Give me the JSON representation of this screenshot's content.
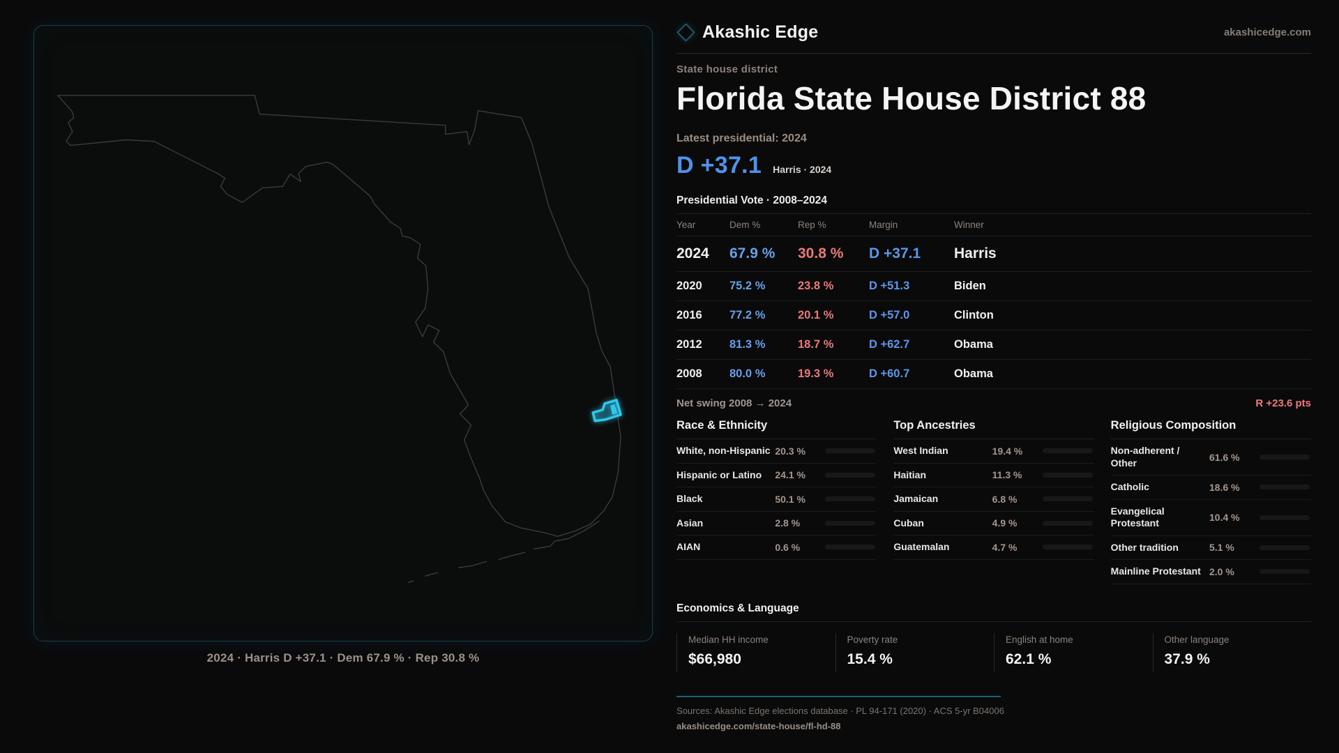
{
  "brand": {
    "name": "Akashic Edge",
    "site": "akashicedge.com",
    "accent": "#2bc6ea"
  },
  "header": {
    "kicker": "State house district",
    "title": "Florida State House District 88"
  },
  "latest": {
    "label": "Latest presidential: 2024",
    "margin": "D +37.1",
    "note": "Harris · 2024"
  },
  "colors": {
    "dem_blue": "#5b98e9",
    "rep_red": "#e97a78",
    "swing_red": "#ef7b78",
    "district_cyan": "#2ec9ef"
  },
  "table": {
    "title": "Presidential Vote · 2008–2024",
    "columns": [
      "Year",
      "Dem %",
      "Rep %",
      "Margin",
      "Winner"
    ],
    "rows": [
      {
        "year": "2024",
        "dem": "67.9 %",
        "rep": "30.8 %",
        "margin": "D +37.1",
        "winner": "Harris"
      },
      {
        "year": "2020",
        "dem": "75.2 %",
        "rep": "23.8 %",
        "margin": "D +51.3",
        "winner": "Biden"
      },
      {
        "year": "2016",
        "dem": "77.2 %",
        "rep": "20.1 %",
        "margin": "D +57.0",
        "winner": "Clinton"
      },
      {
        "year": "2012",
        "dem": "81.3 %",
        "rep": "18.7 %",
        "margin": "D +62.7",
        "winner": "Obama"
      },
      {
        "year": "2008",
        "dem": "80.0 %",
        "rep": "19.3 %",
        "margin": "D +60.7",
        "winner": "Obama"
      }
    ]
  },
  "net_swing": {
    "label": "Net swing 2008 → 2024",
    "value": "R +23.6 pts"
  },
  "demographics": [
    {
      "title": "Race & Ethnicity",
      "rows": [
        {
          "label": "White, non-Hispanic",
          "value": "20.3 %",
          "pct": 20.3,
          "color": "#93a9c6"
        },
        {
          "label": "Hispanic or Latino",
          "value": "24.1 %",
          "pct": 24.1,
          "color": "#d7991f"
        },
        {
          "label": "Black",
          "value": "50.1 %",
          "pct": 50.1,
          "color": "#8f7ee0"
        },
        {
          "label": "Asian",
          "value": "2.8 %",
          "pct": 2.8,
          "color": "#21a878"
        },
        {
          "label": "AIAN",
          "value": "0.6 %",
          "pct": 0.6,
          "color": "#93a9c6"
        }
      ]
    },
    {
      "title": "Top Ancestries",
      "rows": [
        {
          "label": "West Indian",
          "value": "19.4 %",
          "pct": 19.4,
          "color": "#8f7ee0"
        },
        {
          "label": "Haitian",
          "value": "11.3 %",
          "pct": 11.3,
          "color": "#8f7ee0"
        },
        {
          "label": "Jamaican",
          "value": "6.8 %",
          "pct": 6.8,
          "color": "#8f7ee0"
        },
        {
          "label": "Cuban",
          "value": "4.9 %",
          "pct": 4.9,
          "color": "#d7991f"
        },
        {
          "label": "Guatemalan",
          "value": "4.7 %",
          "pct": 4.7,
          "color": "#d7991f"
        }
      ]
    },
    {
      "title": "Religious Composition",
      "rows": [
        {
          "label": "Non-adherent / Other",
          "value": "61.6 %",
          "pct": 61.6,
          "color": "#7d8a9e"
        },
        {
          "label": "Catholic",
          "value": "18.6 %",
          "pct": 18.6,
          "color": "#dcb122"
        },
        {
          "label": "Evangelical Protestant",
          "value": "10.4 %",
          "pct": 10.4,
          "color": "#e06e6c"
        },
        {
          "label": "Other tradition",
          "value": "5.1 %",
          "pct": 5.1,
          "color": "#76808f"
        },
        {
          "label": "Mainline Protestant",
          "value": "2.0 %",
          "pct": 2.0,
          "color": "#4a8fe2"
        }
      ]
    }
  ],
  "economics": {
    "title": "Economics & Language",
    "stats": [
      {
        "label": "Median HH income",
        "value": "$66,980"
      },
      {
        "label": "Poverty rate",
        "value": "15.4 %"
      },
      {
        "label": "English at home",
        "value": "62.1 %"
      },
      {
        "label": "Other language",
        "value": "37.9 %"
      }
    ]
  },
  "footer": {
    "sources": "Sources: Akashic Edge elections database · PL 94-171 (2020) · ACS 5-yr B04006",
    "permalink": "akashicedge.com/state-house/fl-hd-88"
  },
  "map": {
    "caption": "2024 · Harris D +37.1 · Dem 67.9 % · Rep 30.8 %"
  }
}
